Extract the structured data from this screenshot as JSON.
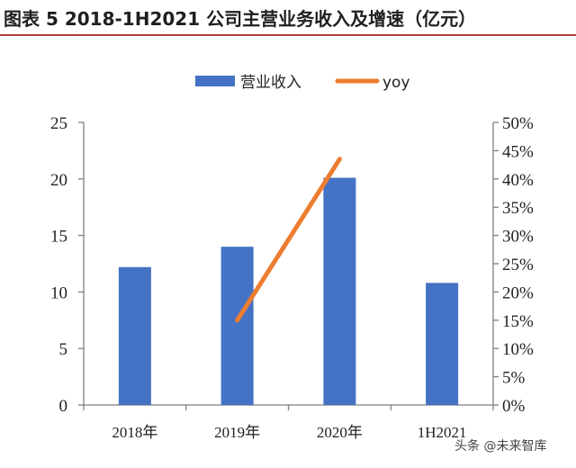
{
  "header": {
    "title": "图表 5 2018-1H2021 公司主营业务收入及增速（亿元）"
  },
  "watermark": "头条 @未来智库",
  "colors": {
    "bar": "#4472C4",
    "line": "#ED7D31",
    "axis": "#7f7f7f",
    "title_rule": "#b04040"
  },
  "chart_data": {
    "type": "bar",
    "title": "",
    "xlabel": "",
    "ylabel": "",
    "categories": [
      "2018年",
      "2019年",
      "2020年",
      "1H2021"
    ],
    "series": [
      {
        "name": "营业收入",
        "type": "bar",
        "axis": "left",
        "values": [
          12.2,
          14.0,
          20.1,
          10.8
        ]
      },
      {
        "name": "yoy",
        "type": "line",
        "axis": "right",
        "values": [
          null,
          0.15,
          0.435,
          null
        ]
      }
    ],
    "ylim": [
      0,
      25
    ],
    "yticks": [
      0,
      5,
      10,
      15,
      20,
      25
    ],
    "ytick_labels": [
      "0",
      "5",
      "10",
      "15",
      "20",
      "25"
    ],
    "y2lim": [
      0,
      0.5
    ],
    "y2ticks": [
      0,
      0.05,
      0.1,
      0.15,
      0.2,
      0.25,
      0.3,
      0.35,
      0.4,
      0.45,
      0.5
    ],
    "y2tick_labels": [
      "0%",
      "5%",
      "10%",
      "15%",
      "20%",
      "25%",
      "30%",
      "35%",
      "40%",
      "45%",
      "50%"
    ],
    "grid": false,
    "legend_position": "top-center"
  }
}
